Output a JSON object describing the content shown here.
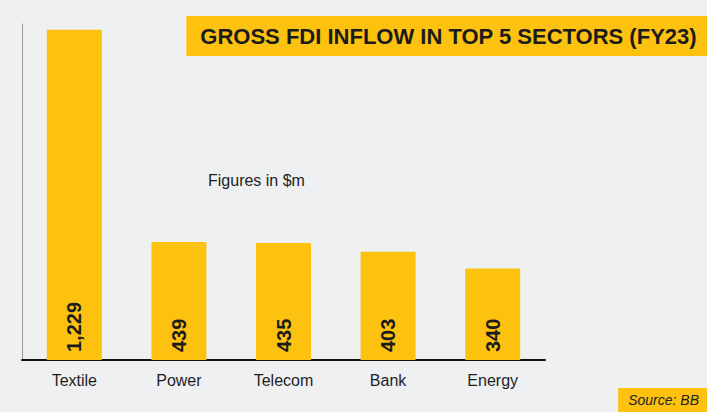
{
  "chart_data": {
    "type": "bar",
    "title": "GROSS FDI INFLOW IN TOP 5 SECTORS (FY23)",
    "subtitle": "Figures in $m",
    "annotations": [
      "Source: BB"
    ],
    "categories": [
      "Textile",
      "Power",
      "Telecom",
      "Bank",
      "Energy"
    ],
    "values": [
      1229,
      439,
      435,
      403,
      340
    ],
    "value_labels": [
      "1,229",
      "439",
      "435",
      "403",
      "340"
    ],
    "color": "#fcc20f",
    "ylim": [
      0,
      1250
    ],
    "data_labels": true,
    "tick_labels": "x",
    "grid": false
  }
}
